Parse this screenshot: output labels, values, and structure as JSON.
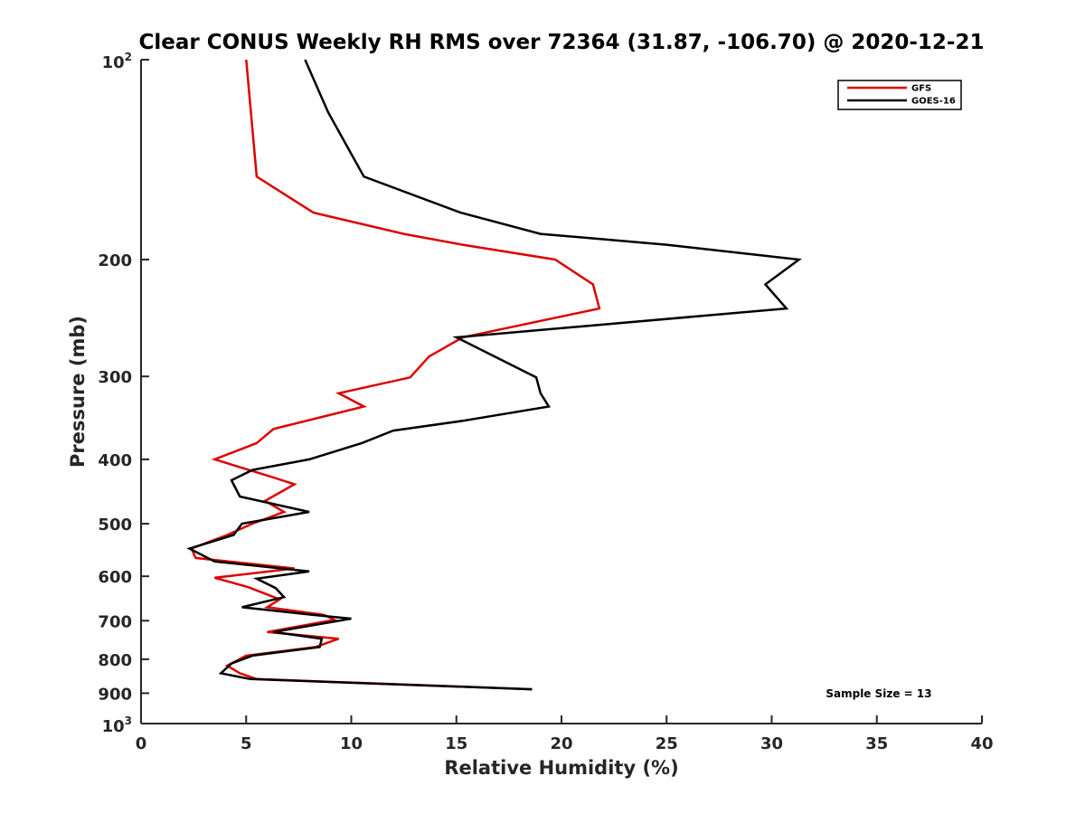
{
  "chart_data": {
    "type": "line",
    "title": "Clear CONUS Weekly RH RMS over 72364 (31.87, -106.70) @ 2020-12-21",
    "xlabel": "Relative Humidity (%)",
    "ylabel": "Pressure (mb)",
    "xlim": [
      0,
      40
    ],
    "ylim": [
      100,
      1000
    ],
    "y_scale": "log",
    "y_reversed": true,
    "x_ticks": [
      "0",
      "5",
      "10",
      "15",
      "20",
      "25",
      "30",
      "35",
      "40"
    ],
    "y_ticks": [
      {
        "value": 100,
        "base": "10",
        "exp": "2"
      },
      {
        "value": 200,
        "label": "200"
      },
      {
        "value": 300,
        "label": "300"
      },
      {
        "value": 400,
        "label": "400"
      },
      {
        "value": 500,
        "label": "500"
      },
      {
        "value": 600,
        "label": "600"
      },
      {
        "value": 700,
        "label": "700"
      },
      {
        "value": 800,
        "label": "800"
      },
      {
        "value": 900,
        "label": "900"
      },
      {
        "value": 1000,
        "base": "10",
        "exp": "3"
      }
    ],
    "legend_position": "top-right",
    "grid": false,
    "annotation": "Sample Size = 13",
    "series": [
      {
        "name": "GFS",
        "color": "#dd0000",
        "points": [
          [
            5.0,
            100
          ],
          [
            5.5,
            150
          ],
          [
            8.2,
            170
          ],
          [
            12.5,
            183
          ],
          [
            15.3,
            190
          ],
          [
            19.7,
            200
          ],
          [
            21.5,
            218
          ],
          [
            21.8,
            237
          ],
          [
            15.3,
            262
          ],
          [
            13.7,
            280
          ],
          [
            12.8,
            301
          ],
          [
            9.4,
            318
          ],
          [
            10.6,
            333
          ],
          [
            6.3,
            360
          ],
          [
            5.5,
            378
          ],
          [
            3.5,
            400
          ],
          [
            6.2,
            425
          ],
          [
            7.3,
            436
          ],
          [
            5.9,
            462
          ],
          [
            6.8,
            480
          ],
          [
            5.3,
            500
          ],
          [
            4.1,
            520
          ],
          [
            2.4,
            545
          ],
          [
            2.6,
            563
          ],
          [
            7.3,
            584
          ],
          [
            3.5,
            603
          ],
          [
            5.1,
            623
          ],
          [
            6.6,
            650
          ],
          [
            6.0,
            668
          ],
          [
            8.7,
            686
          ],
          [
            9.2,
            698
          ],
          [
            6.0,
            728
          ],
          [
            9.4,
            745
          ],
          [
            8.3,
            767
          ],
          [
            5.0,
            790
          ],
          [
            4.1,
            818
          ],
          [
            4.7,
            840
          ],
          [
            5.5,
            857
          ],
          [
            18.6,
            888
          ]
        ]
      },
      {
        "name": "GOES-16",
        "color": "#000000",
        "points": [
          [
            7.8,
            100
          ],
          [
            8.9,
            120
          ],
          [
            10.6,
            150
          ],
          [
            15.2,
            170
          ],
          [
            19.0,
            183
          ],
          [
            25.0,
            190
          ],
          [
            31.3,
            200
          ],
          [
            29.7,
            218
          ],
          [
            30.7,
            237
          ],
          [
            15.0,
            262
          ],
          [
            18.8,
            301
          ],
          [
            19.0,
            318
          ],
          [
            19.4,
            333
          ],
          [
            15.3,
            350
          ],
          [
            12.0,
            362
          ],
          [
            10.5,
            378
          ],
          [
            8.0,
            400
          ],
          [
            5.3,
            415
          ],
          [
            4.3,
            430
          ],
          [
            4.7,
            455
          ],
          [
            8.0,
            480
          ],
          [
            4.8,
            500
          ],
          [
            4.4,
            520
          ],
          [
            2.3,
            545
          ],
          [
            3.5,
            570
          ],
          [
            8.0,
            590
          ],
          [
            5.5,
            605
          ],
          [
            6.4,
            625
          ],
          [
            6.8,
            645
          ],
          [
            4.8,
            668
          ],
          [
            8.2,
            686
          ],
          [
            10.0,
            695
          ],
          [
            6.3,
            728
          ],
          [
            8.6,
            745
          ],
          [
            8.5,
            767
          ],
          [
            5.3,
            790
          ],
          [
            4.3,
            812
          ],
          [
            3.8,
            840
          ],
          [
            5.2,
            857
          ],
          [
            18.6,
            888
          ]
        ]
      }
    ]
  }
}
